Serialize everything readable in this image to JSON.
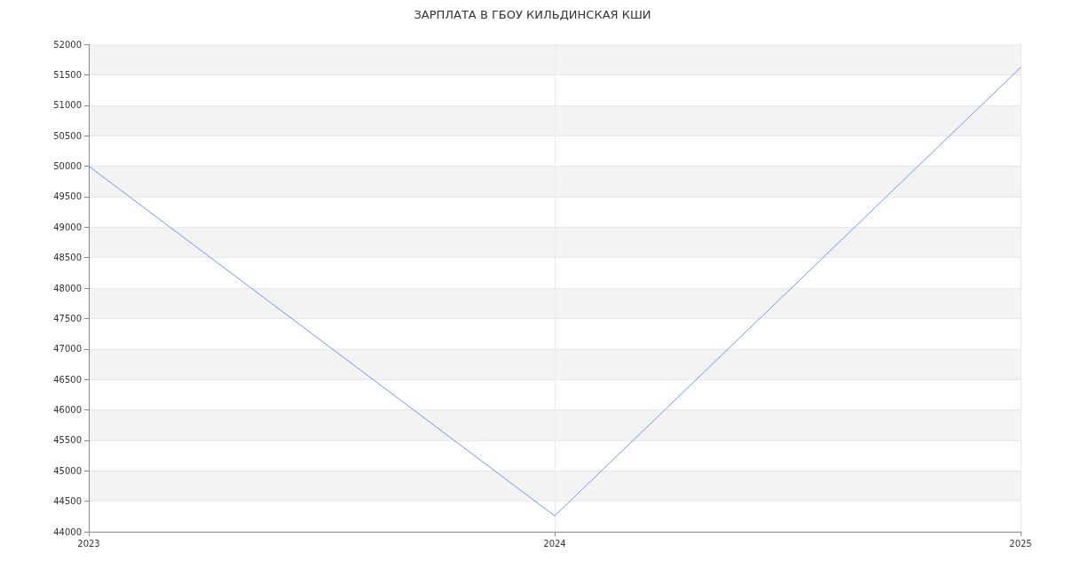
{
  "chart_data": {
    "type": "line",
    "title": "ЗАРПЛАТА В ГБОУ КИЛЬДИНСКАЯ КШИ",
    "x": [
      2023,
      2024,
      2025
    ],
    "series": [
      {
        "color": "#6b98f0",
        "values": [
          50000,
          44260,
          51620
        ]
      }
    ],
    "xlim": [
      2023,
      2025
    ],
    "xticks": [
      2023,
      2024,
      2025
    ],
    "ylim": [
      44000,
      52000
    ],
    "yticks": [
      44000,
      44500,
      45000,
      45500,
      46000,
      46500,
      47000,
      47500,
      48000,
      48500,
      49000,
      49500,
      50000,
      50500,
      51000,
      51500,
      52000
    ],
    "grid": true,
    "marker": "none",
    "line_style": "solid"
  }
}
